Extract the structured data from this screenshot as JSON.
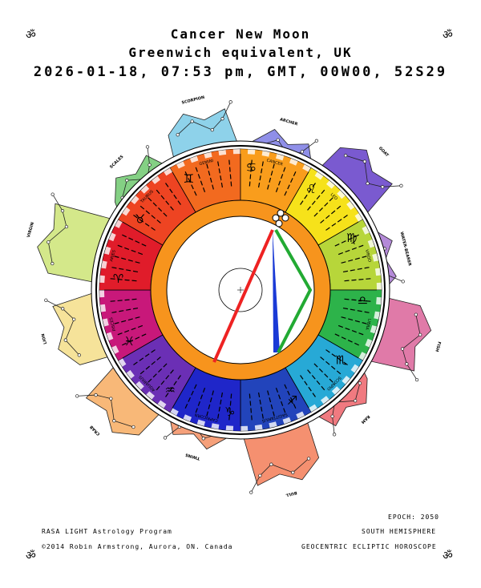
{
  "header": {
    "title": "Cancer New Moon",
    "location": "Greenwich equivalent, UK",
    "datetime": "2026-01-18, 07:53 pm, GMT,  00W00, 52S29"
  },
  "corner_symbol": "ॐ",
  "footer": {
    "program": "RASA LIGHT Astrology Program",
    "copyright": "©2014 Robin Armstrong, Aurora, ON. Canada",
    "epoch": "EPOCH: 2050",
    "hemisphere": "SOUTH HEMISPHERE",
    "chart_type": "GEOCENTRIC ECLIPTIC HOROSCOPE"
  },
  "wheel_signs": [
    {
      "name": "GEMINI",
      "glyph": "♊",
      "color": "#f26a1f"
    },
    {
      "name": "CANCER",
      "glyph": "♋",
      "color": "#f99d1c"
    },
    {
      "name": "LEO",
      "glyph": "♌",
      "color": "#f6e21a"
    },
    {
      "name": "VIRGO",
      "glyph": "♍",
      "color": "#b7d63a"
    },
    {
      "name": "LIBRA",
      "glyph": "♎",
      "color": "#2db34a"
    },
    {
      "name": "SCORPIO",
      "glyph": "♏",
      "color": "#27a9d6"
    },
    {
      "name": "SAGITTARIUS",
      "glyph": "♐",
      "color": "#2244bb"
    },
    {
      "name": "CAPRICORN",
      "glyph": "♑",
      "color": "#1f26c9"
    },
    {
      "name": "AQUARIUS",
      "glyph": "♒",
      "color": "#6b2fb5"
    },
    {
      "name": "PISCES",
      "glyph": "♓",
      "color": "#c8187a"
    },
    {
      "name": "ARIES",
      "glyph": "♈",
      "color": "#e01c2a"
    },
    {
      "name": "TAURUS",
      "glyph": "♉",
      "color": "#ee4422"
    }
  ],
  "constellations": [
    {
      "name": "ARCHER",
      "color": "#8f8fe8"
    },
    {
      "name": "GOAT",
      "color": "#7a5ad0"
    },
    {
      "name": "WATER-BEARER",
      "color": "#b48ad8"
    },
    {
      "name": "FISH",
      "color": "#e07aa8"
    },
    {
      "name": "RAM",
      "color": "#f07a80"
    },
    {
      "name": "BULL",
      "color": "#f59070"
    },
    {
      "name": "TWINS",
      "color": "#f5a07a"
    },
    {
      "name": "CRAB",
      "color": "#f8b878"
    },
    {
      "name": "LION",
      "color": "#f6e39a"
    },
    {
      "name": "VIRGIN",
      "color": "#d4e88a"
    },
    {
      "name": "SCALES",
      "color": "#84d084"
    },
    {
      "name": "SCORPION",
      "color": "#8ed2ea"
    }
  ],
  "colors": {
    "ring": "#f7941d",
    "red_line": "#ee2222",
    "blue_line": "#1a3ad6",
    "green_line": "#22aa33"
  }
}
